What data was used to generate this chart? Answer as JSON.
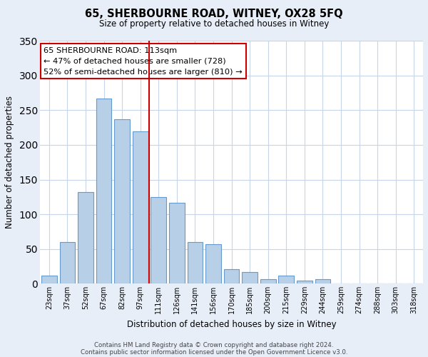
{
  "title": "65, SHERBOURNE ROAD, WITNEY, OX28 5FQ",
  "subtitle": "Size of property relative to detached houses in Witney",
  "xlabel": "Distribution of detached houses by size in Witney",
  "ylabel": "Number of detached properties",
  "categories": [
    "23sqm",
    "37sqm",
    "52sqm",
    "67sqm",
    "82sqm",
    "97sqm",
    "111sqm",
    "126sqm",
    "141sqm",
    "156sqm",
    "170sqm",
    "185sqm",
    "200sqm",
    "215sqm",
    "229sqm",
    "244sqm",
    "259sqm",
    "274sqm",
    "288sqm",
    "303sqm",
    "318sqm"
  ],
  "values": [
    11,
    60,
    132,
    267,
    237,
    220,
    125,
    117,
    60,
    57,
    21,
    17,
    6,
    11,
    4,
    6,
    0,
    0,
    0,
    0,
    0
  ],
  "bar_color": "#b8cfe8",
  "bar_edge_color": "#6699cc",
  "highlight_line_color": "#cc0000",
  "annotation_title": "65 SHERBOURNE ROAD: 113sqm",
  "annotation_line1": "← 47% of detached houses are smaller (728)",
  "annotation_line2": "52% of semi-detached houses are larger (810) →",
  "annotation_box_color": "#cc0000",
  "ylim": [
    0,
    350
  ],
  "yticks": [
    0,
    50,
    100,
    150,
    200,
    250,
    300,
    350
  ],
  "footer1": "Contains HM Land Registry data © Crown copyright and database right 2024.",
  "footer2": "Contains public sector information licensed under the Open Government Licence v3.0.",
  "bg_color": "#e8eef8",
  "plot_bg_color": "#ffffff",
  "grid_color": "#c8d4e8"
}
